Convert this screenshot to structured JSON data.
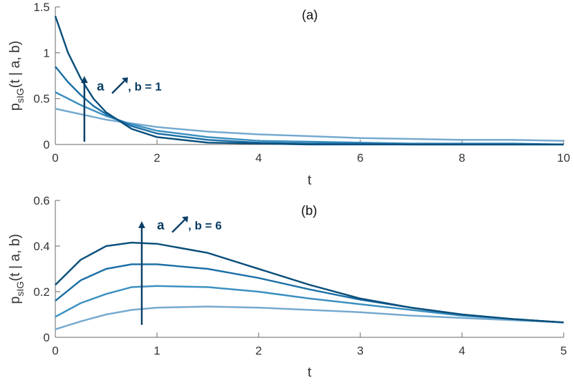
{
  "chart_data": [
    {
      "type": "line",
      "panel_label": "(a)",
      "x_label": "t",
      "y_label_parts": [
        "p",
        "sIG",
        "(t | a, b)"
      ],
      "annotation_parts": [
        "a",
        ", b = 1"
      ],
      "x": [
        0,
        0.25,
        0.5,
        0.75,
        1,
        1.5,
        2,
        3,
        4,
        5,
        6,
        7,
        8,
        9,
        10
      ],
      "series": [
        {
          "color": "#74a9cf",
          "values": [
            0.39,
            0.36,
            0.33,
            0.3,
            0.27,
            0.23,
            0.19,
            0.14,
            0.11,
            0.09,
            0.07,
            0.06,
            0.05,
            0.05,
            0.04
          ]
        },
        {
          "color": "#3a8fc0",
          "values": [
            0.57,
            0.5,
            0.43,
            0.37,
            0.31,
            0.22,
            0.15,
            0.08,
            0.04,
            0.03,
            0.02,
            0.01,
            0.01,
            0.01,
            0
          ]
        },
        {
          "color": "#1b6fa6",
          "values": [
            0.85,
            0.68,
            0.54,
            0.42,
            0.33,
            0.2,
            0.12,
            0.05,
            0.02,
            0.01,
            0.01,
            0,
            0,
            0,
            0
          ]
        },
        {
          "color": "#0b4f7c",
          "values": [
            1.4,
            1.0,
            0.72,
            0.5,
            0.35,
            0.17,
            0.08,
            0.02,
            0.01,
            0,
            0,
            0,
            0,
            0,
            0
          ]
        }
      ],
      "xlim": [
        0,
        10
      ],
      "xticks": [
        0,
        2,
        4,
        6,
        8,
        10
      ],
      "ylim": [
        0,
        1.5
      ],
      "yticks": [
        0,
        0.5,
        1,
        1.5
      ]
    },
    {
      "type": "line",
      "panel_label": "(b)",
      "x_label": "t",
      "y_label_parts": [
        "p",
        "sIG",
        "(t | a, b)"
      ],
      "annotation_parts": [
        "a",
        ", b = 6"
      ],
      "x": [
        0,
        0.25,
        0.5,
        0.75,
        1,
        1.5,
        2,
        2.5,
        3,
        3.5,
        4,
        4.5,
        5
      ],
      "series": [
        {
          "color": "#74a9cf",
          "values": [
            0.035,
            0.07,
            0.1,
            0.12,
            0.13,
            0.135,
            0.13,
            0.12,
            0.11,
            0.095,
            0.085,
            0.075,
            0.065
          ]
        },
        {
          "color": "#3a8fc0",
          "values": [
            0.09,
            0.15,
            0.19,
            0.22,
            0.225,
            0.22,
            0.2,
            0.17,
            0.145,
            0.12,
            0.095,
            0.08,
            0.065
          ]
        },
        {
          "color": "#1b6fa6",
          "values": [
            0.16,
            0.25,
            0.3,
            0.32,
            0.32,
            0.3,
            0.26,
            0.21,
            0.165,
            0.13,
            0.1,
            0.08,
            0.065
          ]
        },
        {
          "color": "#0b4f7c",
          "values": [
            0.23,
            0.34,
            0.4,
            0.415,
            0.41,
            0.37,
            0.3,
            0.23,
            0.17,
            0.13,
            0.1,
            0.08,
            0.065
          ]
        }
      ],
      "xlim": [
        0,
        5
      ],
      "xticks": [
        0,
        1,
        2,
        3,
        4,
        5
      ],
      "ylim": [
        0,
        0.6
      ],
      "yticks": [
        0,
        0.2,
        0.4,
        0.6
      ]
    }
  ]
}
